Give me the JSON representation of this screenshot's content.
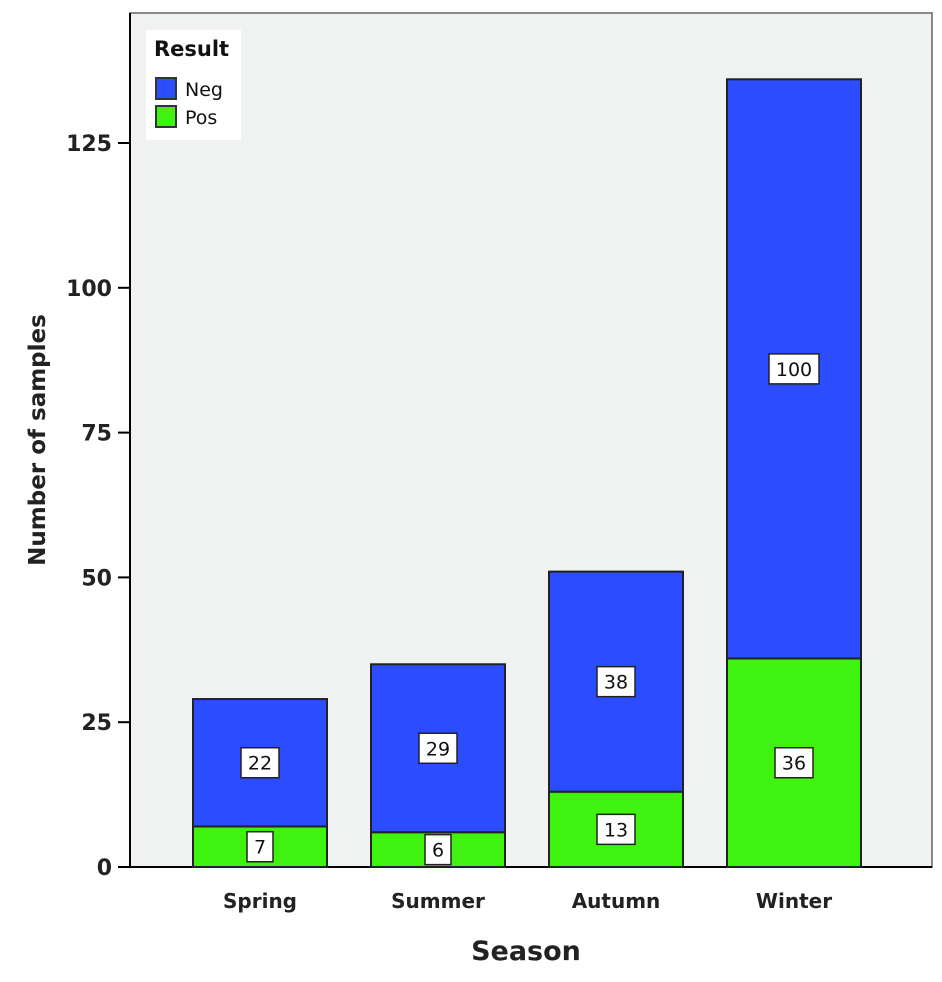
{
  "chart_data": {
    "type": "bar",
    "stacked": true,
    "title": "",
    "xlabel": "Season",
    "ylabel": "Number of samples",
    "ylim": [
      0,
      140
    ],
    "yticks": [
      0,
      25,
      50,
      75,
      100,
      125
    ],
    "categories": [
      "Spring",
      "Summer",
      "Autumn",
      "Winter"
    ],
    "series": [
      {
        "name": "Pos",
        "color": "#3ff20f",
        "values": [
          7,
          6,
          13,
          36
        ]
      },
      {
        "name": "Neg",
        "color": "#2b4cff",
        "values": [
          22,
          29,
          38,
          100
        ]
      }
    ],
    "legend": {
      "title": "Result",
      "position": "top-left",
      "entries": [
        "Neg",
        "Pos"
      ]
    },
    "grid": false
  }
}
